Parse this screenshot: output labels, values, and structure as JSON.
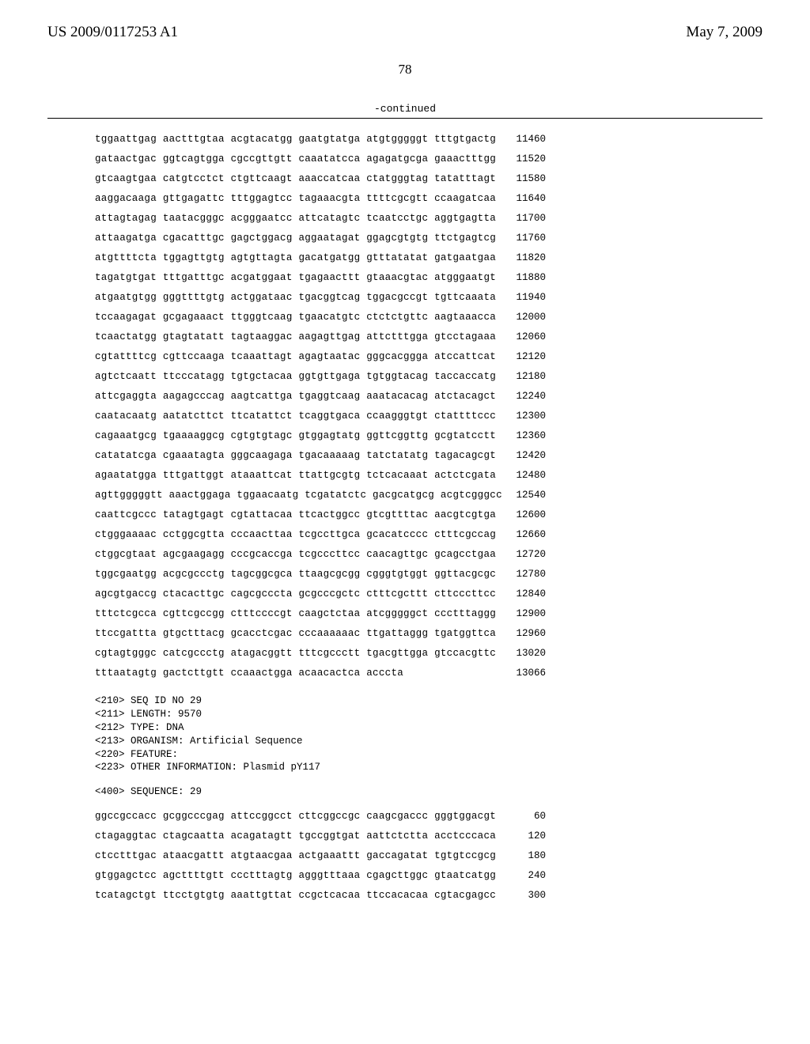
{
  "header": {
    "pub_number": "US 2009/0117253 A1",
    "pub_date": "May 7, 2009",
    "page_number": "78"
  },
  "continued_label": "-continued",
  "seq1": {
    "rows": [
      {
        "t": "tggaattgag aactttgtaa acgtacatgg gaatgtatga atgtgggggt tttgtgactg",
        "n": "11460"
      },
      {
        "t": "gataactgac ggtcagtgga cgccgttgtt caaatatcca agagatgcga gaaactttgg",
        "n": "11520"
      },
      {
        "t": "gtcaagtgaa catgtcctct ctgttcaagt aaaccatcaa ctatgggtag tatatttagt",
        "n": "11580"
      },
      {
        "t": "aaggacaaga gttgagattc tttggagtcc tagaaacgta ttttcgcgtt ccaagatcaa",
        "n": "11640"
      },
      {
        "t": "attagtagag taatacgggc acgggaatcc attcatagtc tcaatcctgc aggtgagtta",
        "n": "11700"
      },
      {
        "t": "attaagatga cgacatttgc gagctggacg aggaatagat ggagcgtgtg ttctgagtcg",
        "n": "11760"
      },
      {
        "t": "atgttttcta tggagttgtg agtgttagta gacatgatgg gtttatatat gatgaatgaa",
        "n": "11820"
      },
      {
        "t": "tagatgtgat tttgatttgc acgatggaat tgagaacttt gtaaacgtac atgggaatgt",
        "n": "11880"
      },
      {
        "t": "atgaatgtgg gggttttgtg actggataac tgacggtcag tggacgccgt tgttcaaata",
        "n": "11940"
      },
      {
        "t": "tccaagagat gcgagaaact ttgggtcaag tgaacatgtc ctctctgttc aagtaaacca",
        "n": "12000"
      },
      {
        "t": "tcaactatgg gtagtatatt tagtaaggac aagagttgag attctttgga gtcctagaaa",
        "n": "12060"
      },
      {
        "t": "cgtattttcg cgttccaaga tcaaattagt agagtaatac gggcacggga atccattcat",
        "n": "12120"
      },
      {
        "t": "agtctcaatt ttcccatagg tgtgctacaa ggtgttgaga tgtggtacag taccaccatg",
        "n": "12180"
      },
      {
        "t": "attcgaggta aagagcccag aagtcattga tgaggtcaag aaatacacag atctacagct",
        "n": "12240"
      },
      {
        "t": "caatacaatg aatatcttct ttcatattct tcaggtgaca ccaagggtgt ctattttccc",
        "n": "12300"
      },
      {
        "t": "cagaaatgcg tgaaaaggcg cgtgtgtagc gtggagtatg ggttcggttg gcgtatcctt",
        "n": "12360"
      },
      {
        "t": "catatatcga cgaaatagta gggcaagaga tgacaaaaag tatctatatg tagacagcgt",
        "n": "12420"
      },
      {
        "t": "agaatatgga tttgattggt ataaattcat ttattgcgtg tctcacaaat actctcgata",
        "n": "12480"
      },
      {
        "t": "agttgggggtt aaactggaga tggaacaatg tcgatatctc gacgcatgcg acgtcgggcc",
        "n": "12540"
      },
      {
        "t": "caattcgccc tatagtgagt cgtattacaa ttcactggcc gtcgttttac aacgtcgtga",
        "n": "12600"
      },
      {
        "t": "ctgggaaaac cctggcgtta cccaacttaa tcgccttgca gcacatcccc ctttcgccag",
        "n": "12660"
      },
      {
        "t": "ctggcgtaat agcgaagagg cccgcaccga tcgcccttcc caacagttgc gcagcctgaa",
        "n": "12720"
      },
      {
        "t": "tggcgaatgg acgcgccctg tagcggcgca ttaagcgcgg cgggtgtggt ggttacgcgc",
        "n": "12780"
      },
      {
        "t": "agcgtgaccg ctacacttgc cagcgcccta gcgcccgctc ctttcgcttt cttcccttcc",
        "n": "12840"
      },
      {
        "t": "tttctcgcca cgttcgccgg ctttccccgt caagctctaa atcgggggct ccctttaggg",
        "n": "12900"
      },
      {
        "t": "ttccgattta gtgctttacg gcacctcgac cccaaaaaac ttgattaggg tgatggttca",
        "n": "12960"
      },
      {
        "t": "cgtagtgggc catcgccctg atagacggtt tttcgccctt tgacgttgga gtccacgttc",
        "n": "13020"
      },
      {
        "t": "tttaatagtg gactcttgtt ccaaactgga acaacactca acccta",
        "n": "13066"
      }
    ]
  },
  "meta": [
    "<210> SEQ ID NO 29",
    "<211> LENGTH: 9570",
    "<212> TYPE: DNA",
    "<213> ORGANISM: Artificial Sequence",
    "<220> FEATURE:",
    "<223> OTHER INFORMATION: Plasmid pY117"
  ],
  "seq_label": "<400> SEQUENCE: 29",
  "seq2": {
    "rows": [
      {
        "t": "ggccgccacc gcggcccgag attccggcct cttcggccgc caagcgaccc gggtggacgt",
        "n": "60"
      },
      {
        "t": "ctagaggtac ctagcaatta acagatagtt tgccggtgat aattctctta acctcccaca",
        "n": "120"
      },
      {
        "t": "ctcctttgac ataacgattt atgtaacgaa actgaaattt gaccagatat tgtgtccgcg",
        "n": "180"
      },
      {
        "t": "gtggagctcc agcttttgtt ccctttagtg agggtttaaa cgagcttggc gtaatcatgg",
        "n": "240"
      },
      {
        "t": "tcatagctgt ttcctgtgtg aaattgttat ccgctcacaa ttccacacaa cgtacgagcc",
        "n": "300"
      }
    ]
  }
}
